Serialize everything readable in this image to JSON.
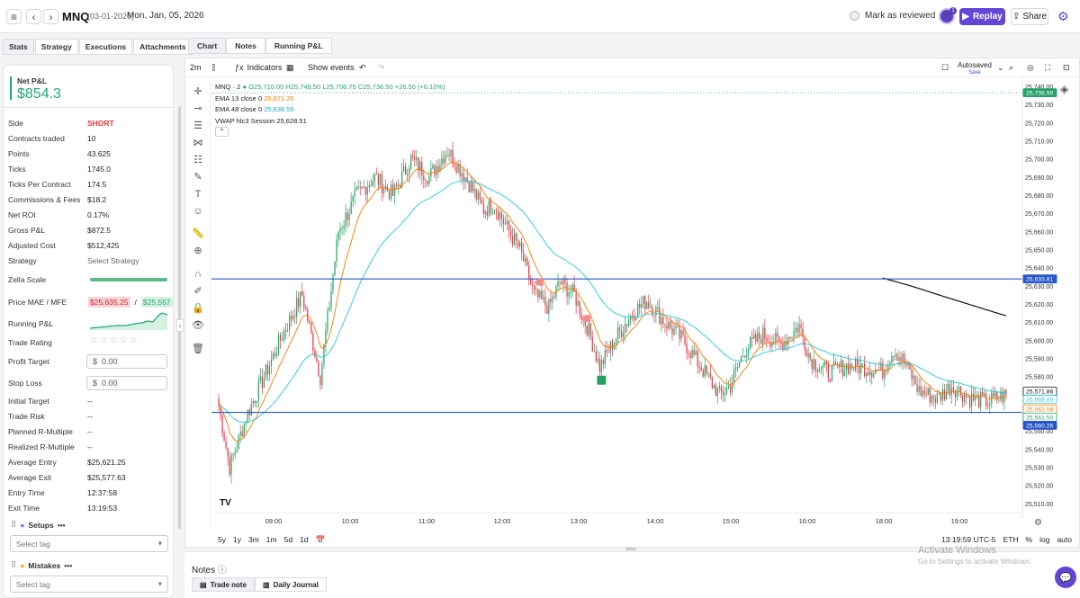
{
  "header": {
    "symbol": "MNQ",
    "date_code": "(03-01-2026)",
    "date_text": "Mon, Jan, 05, 2026",
    "mark_reviewed": "Mark as reviewed",
    "avatar_badge": "1",
    "replay": "Replay",
    "share": "Share"
  },
  "left_tabs": [
    "Stats",
    "Strategy",
    "Executions",
    "Attachments"
  ],
  "pnl": {
    "label": "Net P&L",
    "value": "$854.3"
  },
  "stats": [
    {
      "label": "Side",
      "value": "SHORT"
    },
    {
      "label": "Contracts traded",
      "value": "10"
    },
    {
      "label": "Points",
      "value": "43.625"
    },
    {
      "label": "Ticks",
      "value": "1745.0"
    },
    {
      "label": "Ticks Per Contract",
      "value": "174.5"
    },
    {
      "label": "Commissions & Fees",
      "value": "$18.2"
    },
    {
      "label": "Net ROI",
      "value": "0.17%"
    },
    {
      "label": "Gross P&L",
      "value": "$872.5"
    },
    {
      "label": "Adjusted Cost",
      "value": "$512,425"
    },
    {
      "label": "Strategy",
      "value": "Select Strategy"
    }
  ],
  "zella_label": "Zella Scale",
  "zella_score": 1.0,
  "mae_mfe": {
    "label": "Price MAE / MFE",
    "mae": "$25,635.25",
    "sep": "/",
    "mfe": "$25,557"
  },
  "running_pnl_label": "Running P&L",
  "trade_rating": {
    "label": "Trade Rating",
    "stars": "☆☆☆☆☆",
    "rating": 0
  },
  "profit_target": {
    "label": "Profit Target",
    "prefix": "$",
    "placeholder": "0.00"
  },
  "stop_loss": {
    "label": "Stop Loss",
    "prefix": "$",
    "placeholder": "0.00"
  },
  "stats2": [
    {
      "label": "Initial Target",
      "value": "--"
    },
    {
      "label": "Trade Risk",
      "value": "--"
    },
    {
      "label": "Planned R-Multiple",
      "value": "--"
    },
    {
      "label": "Realized R-Multiple",
      "value": "--"
    },
    {
      "label": "Average Entry",
      "value": "$25,621.25"
    },
    {
      "label": "Average Exit",
      "value": "$25,577.63"
    },
    {
      "label": "Entry Time",
      "value": "12:37:58"
    },
    {
      "label": "Exit Time",
      "value": "13:19:53"
    }
  ],
  "setups": {
    "label": "Setups",
    "placeholder": "Select tag"
  },
  "mistakes": {
    "label": "Mistakes",
    "placeholder": "Select tag"
  },
  "chart_tabs": [
    "Chart",
    "Notes",
    "Running P&L"
  ],
  "toolbar": {
    "interval": "2m",
    "indicators": "Indicators",
    "show_events": "Show events",
    "autosaved": "Autosaved",
    "save": "Save"
  },
  "legend": {
    "title": "MNQ · 2",
    "ohlc": "O25,710.00 H25,749.50 L25,706.75 C25,736.50 +26.50 (+0.10%)",
    "ema13_label": "EMA 13 close 0",
    "ema13_val": "25,671.26",
    "ema48_label": "EMA 48 close 0",
    "ema48_val": "25,638.59",
    "vwap_label": "VWAP hlc3 Session",
    "vwap_val": "25,628.51"
  },
  "ranges": [
    "5y",
    "1y",
    "3m",
    "1m",
    "5d",
    "1d"
  ],
  "status": {
    "time": "13:19:59 UTC-5",
    "session": "ETH",
    "pct": "%",
    "log": "log",
    "auto": "auto"
  },
  "tv_logo": "TV",
  "colors": {
    "up": "#26a269",
    "down": "#e53946",
    "ema13": "#f57c00",
    "ema48": "#26c6da",
    "vwap": "#111111",
    "hline": "#2456c9",
    "accent": "#6246d6"
  },
  "chart_data": {
    "type": "candlestick",
    "yaxis_ticks": [
      25740,
      25730,
      25720,
      25710,
      25700,
      25690,
      25680,
      25670,
      25660,
      25650,
      25640,
      25630,
      25620,
      25610,
      25600,
      25590,
      25580,
      25570,
      25560,
      25550,
      25540,
      25530,
      25520,
      25510
    ],
    "xaxis_labels": [
      "09:00",
      "10:00",
      "11:00",
      "12:00",
      "13:00",
      "14:00",
      "15:00",
      "16:00",
      "18:00",
      "19:00"
    ],
    "ylim": [
      25505,
      25742
    ],
    "hlines": [
      25633.81,
      25560.26
    ],
    "badges": [
      {
        "value": "25,736.50",
        "color": "#26a269"
      },
      {
        "value": "25,633.81",
        "color": "#2456c9"
      },
      {
        "value": "25,571.86",
        "color": "#111111",
        "outline": true
      },
      {
        "value": "25,568.85",
        "color": "#26c6da",
        "outline": true
      },
      {
        "value": "25,562.08",
        "color": "#f57c00",
        "outline": true
      },
      {
        "value": "25,561.50",
        "color": "#26a269",
        "outline": true
      },
      {
        "value": "25,560.26",
        "color": "#2456c9"
      }
    ],
    "close_anchors": [
      [
        0,
        25564
      ],
      [
        6,
        25530
      ],
      [
        16,
        25560
      ],
      [
        26,
        25582
      ],
      [
        36,
        25605
      ],
      [
        46,
        25625
      ],
      [
        56,
        25580
      ],
      [
        66,
        25660
      ],
      [
        76,
        25680
      ],
      [
        86,
        25690
      ],
      [
        96,
        25680
      ],
      [
        106,
        25700
      ],
      [
        116,
        25690
      ],
      [
        126,
        25705
      ],
      [
        136,
        25690
      ],
      [
        146,
        25672
      ],
      [
        152,
        25675
      ],
      [
        160,
        25660
      ],
      [
        166,
        25650
      ],
      [
        174,
        25625
      ],
      [
        182,
        25618
      ],
      [
        188,
        25632
      ],
      [
        196,
        25625
      ],
      [
        204,
        25605
      ],
      [
        210,
        25585
      ],
      [
        218,
        25600
      ],
      [
        228,
        25615
      ],
      [
        236,
        25622
      ],
      [
        246,
        25610
      ],
      [
        256,
        25600
      ],
      [
        266,
        25585
      ],
      [
        276,
        25570
      ],
      [
        282,
        25575
      ],
      [
        290,
        25595
      ],
      [
        300,
        25603
      ],
      [
        310,
        25598
      ],
      [
        320,
        25608
      ],
      [
        326,
        25590
      ],
      [
        336,
        25582
      ],
      [
        346,
        25586
      ],
      [
        356,
        25585
      ],
      [
        366,
        25583
      ],
      [
        372,
        25595
      ],
      [
        378,
        25588
      ],
      [
        386,
        25572
      ],
      [
        396,
        25568
      ],
      [
        404,
        25575
      ],
      [
        414,
        25568
      ],
      [
        424,
        25566
      ],
      [
        434,
        25570
      ]
    ],
    "trade_markers": [
      {
        "i": 176,
        "price": 25632,
        "type": "sell"
      },
      {
        "i": 202,
        "price": 25612,
        "type": "sell"
      },
      {
        "i": 211,
        "price": 25578,
        "type": "buy"
      }
    ]
  },
  "notes": {
    "title": "Notes",
    "trade_note": "Trade note",
    "daily_journal": "Daily Journal"
  },
  "watermark": {
    "line1": "Activate Windows",
    "line2": "Go to Settings to activate Windows."
  }
}
